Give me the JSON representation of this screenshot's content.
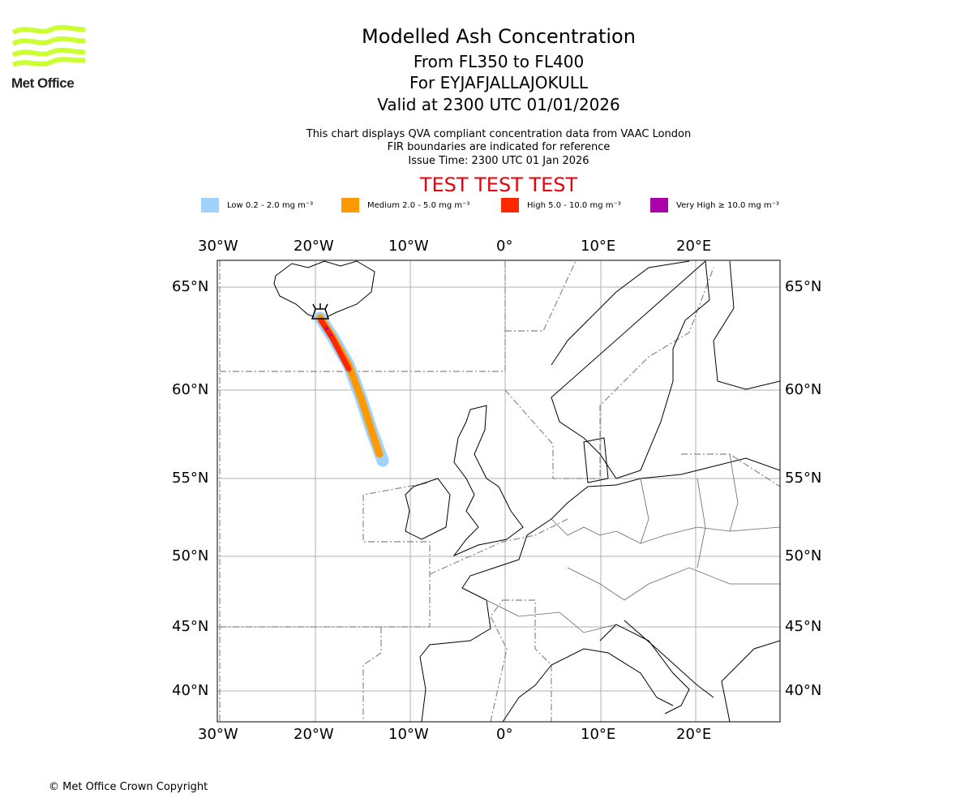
{
  "logo": {
    "text": "Met Office",
    "color": "#ccff33"
  },
  "header": {
    "title": "Modelled Ash Concentration",
    "levels": "From FL350 to FL400",
    "volcano": "For EYJAFJALLAJOKULL",
    "valid": "Valid at 2300 UTC 01/01/2026",
    "note1": "This chart displays QVA compliant concentration data from VAAC London",
    "note2": "FIR boundaries are indicated for reference",
    "issue": "Issue Time: 2300 UTC 01 Jan 2026",
    "test_banner": "TEST TEST TEST"
  },
  "legend": [
    {
      "label": "Low 0.2 - 2.0 mg m⁻³",
      "color": "#a0d2ff"
    },
    {
      "label": "Medium 2.0 - 5.0 mg m⁻³",
      "color": "#ff9900"
    },
    {
      "label": "High 5.0 - 10.0 mg m⁻³",
      "color": "#ff2800"
    },
    {
      "label": "Very High ≥ 10.0 mg m⁻³",
      "color": "#aa00aa"
    }
  ],
  "map": {
    "lon_labels": [
      "30°W",
      "20°W",
      "10°W",
      "0°",
      "10°E",
      "20°E"
    ],
    "lat_labels": [
      "65°N",
      "60°N",
      "55°N",
      "50°N",
      "45°N",
      "40°N"
    ]
  },
  "footer": {
    "copyright": "© Met Office Crown Copyright"
  }
}
